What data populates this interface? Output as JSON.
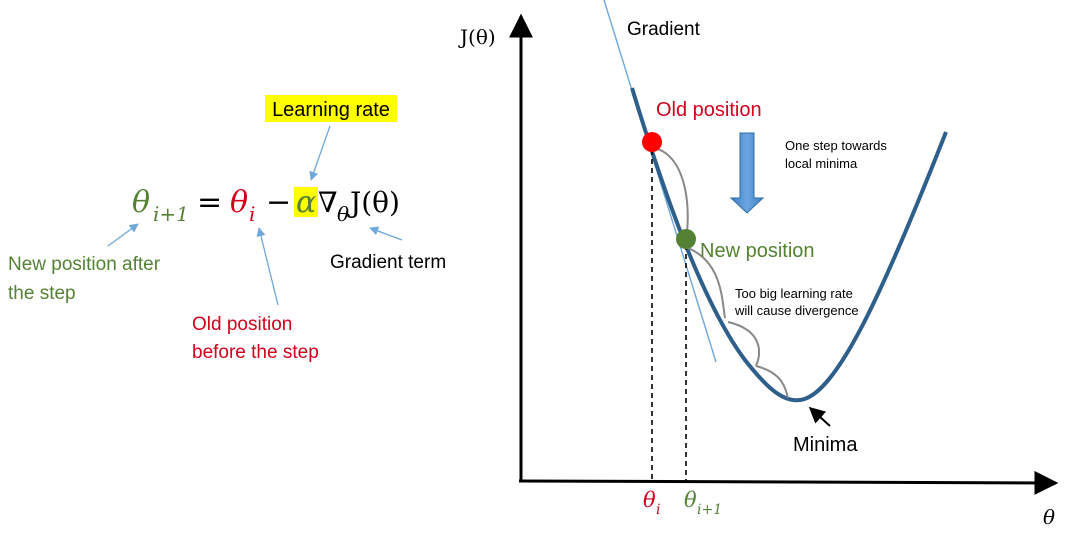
{
  "colors": {
    "green": "#548235",
    "red": "#d0021b",
    "blue_line": "#6fa8dc",
    "curve": "#2e5f8a",
    "highlight": "#ffff00",
    "gray": "#8a8a8a",
    "black": "#000000"
  },
  "equation": {
    "lhs_var": "θ",
    "lhs_sub": "i+1",
    "equals": "=",
    "rhs_var": "θ",
    "rhs_sub": "i",
    "minus": "−",
    "alpha": "α",
    "nabla": "∇",
    "nabla_sub": "θ",
    "func": "J(θ)"
  },
  "annotations": {
    "learning_rate": "Learning rate",
    "new_position_line1": "New position after",
    "new_position_line2": "the step",
    "gradient_term": "Gradient term",
    "old_position_line1": "Old position",
    "old_position_line2": "before the step"
  },
  "graph": {
    "y_axis_label": "J(θ)",
    "x_axis_label": "θ",
    "gradient_label": "Gradient",
    "old_position_label": "Old position",
    "new_position_label": "New position",
    "step_note_line1": "One step towards",
    "step_note_line2": "local minima",
    "divergence_line1": "Too big learning rate",
    "divergence_line2": "will cause divergence",
    "minima_label": "Minima",
    "tick_theta_i_var": "θ",
    "tick_theta_i_sub": "i",
    "tick_theta_i1_var": "θ",
    "tick_theta_i1_sub": "i+1"
  }
}
